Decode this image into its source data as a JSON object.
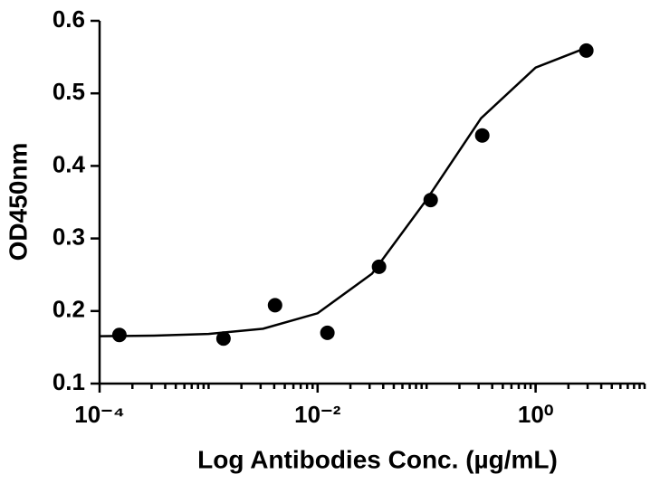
{
  "chart_data": {
    "type": "scatter",
    "x_label": "Log Antibodies Conc. (µg/mL)",
    "y_label": "OD450nm",
    "x": [
      0.000152,
      0.00137,
      0.00407,
      0.0123,
      0.0366,
      0.109,
      0.324,
      2.92
    ],
    "values": [
      0.167,
      0.162,
      0.208,
      0.17,
      0.261,
      0.353,
      0.442,
      0.559
    ],
    "color": "#000000",
    "fit_curve": {
      "x": [
        0.0001,
        0.000316,
        0.001,
        0.00316,
        0.01,
        0.0316,
        0.1,
        0.316,
        1,
        3.16
      ],
      "values": [
        0.1653,
        0.1661,
        0.1684,
        0.1756,
        0.1969,
        0.2515,
        0.3535,
        0.4657,
        0.5355,
        0.5648
      ]
    },
    "xscale": "log",
    "xlim": [
      0.0001,
      10
    ],
    "xticks": [
      {
        "value": 0.0001,
        "label": "10⁻⁴"
      },
      {
        "value": 0.01,
        "label": "10⁻²"
      },
      {
        "value": 1,
        "label": "10⁰"
      }
    ],
    "xminor_ticks": true,
    "ylim": [
      0.1,
      0.6
    ],
    "yticks": [
      0.1,
      0.2,
      0.3,
      0.4,
      0.5,
      0.6
    ],
    "grid": false
  }
}
